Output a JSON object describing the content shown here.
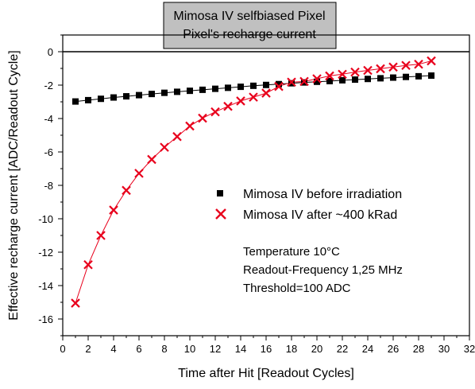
{
  "chart_data": {
    "type": "scatter",
    "title": [
      "Mimosa IV selfbiased Pixel",
      "Pixel's recharge current"
    ],
    "xlabel": "Time after Hit [Readout Cycles]",
    "ylabel": "Effective recharge current [ADC/Readout Cycle]",
    "xlim": [
      0,
      32
    ],
    "ylim": [
      -17,
      1
    ],
    "xticks": [
      0,
      2,
      4,
      6,
      8,
      10,
      12,
      14,
      16,
      18,
      20,
      22,
      24,
      26,
      28,
      30,
      32
    ],
    "xtick_labels": [
      "0",
      "2",
      "4",
      "6",
      "8",
      "10",
      "12",
      "14",
      "16",
      "18",
      "20",
      "22",
      "24",
      "26",
      "28",
      "30",
      "32"
    ],
    "yticks": [
      0,
      -2,
      -4,
      -6,
      -8,
      -10,
      -12,
      -14,
      -16
    ],
    "ytick_labels": [
      "0",
      "-2",
      "-4",
      "-6",
      "-8",
      "-10",
      "-12",
      "-14",
      "-16"
    ],
    "zero_line": true,
    "legend_position": "lower-right",
    "series": [
      {
        "name": "Mimosa IV before irradiation",
        "marker": "square",
        "color": "#000000",
        "x": [
          1,
          2,
          3,
          4,
          5,
          6,
          7,
          8,
          9,
          10,
          11,
          12,
          13,
          14,
          15,
          16,
          17,
          18,
          19,
          20,
          21,
          22,
          23,
          24,
          25,
          26,
          27,
          28,
          29
        ],
        "y": [
          -2.98,
          -2.9,
          -2.82,
          -2.74,
          -2.67,
          -2.6,
          -2.53,
          -2.46,
          -2.4,
          -2.34,
          -2.28,
          -2.22,
          -2.16,
          -2.1,
          -2.04,
          -1.99,
          -1.94,
          -1.89,
          -1.84,
          -1.8,
          -1.76,
          -1.71,
          -1.67,
          -1.63,
          -1.59,
          -1.55,
          -1.51,
          -1.47,
          -1.43
        ]
      },
      {
        "name": "Mimosa IV after ~400 kRad",
        "marker": "x",
        "color": "#e8001c",
        "x": [
          1,
          2,
          3,
          4,
          5,
          6,
          7,
          8,
          9,
          10,
          11,
          12,
          13,
          14,
          15,
          16,
          17,
          18,
          19,
          20,
          21,
          22,
          23,
          24,
          25,
          26,
          27,
          28,
          29
        ],
        "y": [
          -15.05,
          -12.75,
          -11.0,
          -9.48,
          -8.3,
          -7.28,
          -6.45,
          -5.72,
          -5.08,
          -4.45,
          -3.98,
          -3.6,
          -3.27,
          -2.95,
          -2.72,
          -2.48,
          -2.08,
          -1.82,
          -1.78,
          -1.62,
          -1.45,
          -1.35,
          -1.22,
          -1.12,
          -1.02,
          -0.92,
          -0.82,
          -0.75,
          -0.55
        ]
      }
    ],
    "annotations": [
      "Temperature 10°C",
      "Readout-Frequency 1,25 MHz",
      "Threshold=100 ADC"
    ]
  }
}
